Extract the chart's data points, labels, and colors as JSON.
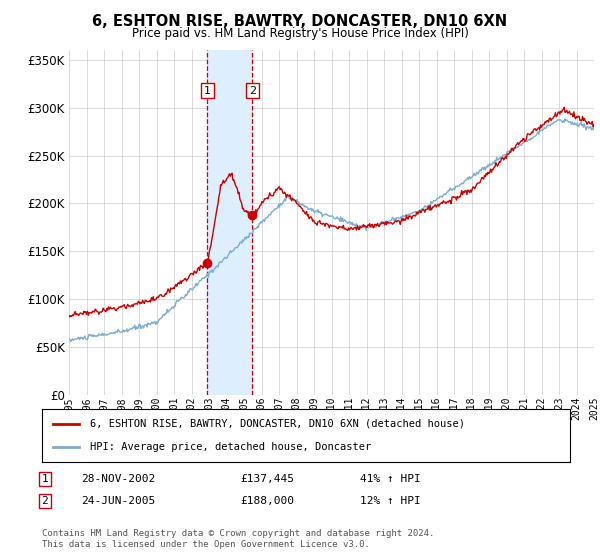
{
  "title": "6, ESHTON RISE, BAWTRY, DONCASTER, DN10 6XN",
  "subtitle": "Price paid vs. HM Land Registry's House Price Index (HPI)",
  "ylim": [
    0,
    360000
  ],
  "yticks": [
    0,
    50000,
    100000,
    150000,
    200000,
    250000,
    300000,
    350000
  ],
  "ytick_labels": [
    "£0",
    "£50K",
    "£100K",
    "£150K",
    "£200K",
    "£250K",
    "£300K",
    "£350K"
  ],
  "sale1": {
    "date_num": 2002.91,
    "price": 137445,
    "label": "1",
    "date_str": "28-NOV-2002"
  },
  "sale2": {
    "date_num": 2005.48,
    "price": 188000,
    "label": "2",
    "date_str": "24-JUN-2005"
  },
  "legend_red": "6, ESHTON RISE, BAWTRY, DONCASTER, DN10 6XN (detached house)",
  "legend_blue": "HPI: Average price, detached house, Doncaster",
  "table_row1": [
    "1",
    "28-NOV-2002",
    "£137,445",
    "41% ↑ HPI"
  ],
  "table_row2": [
    "2",
    "24-JUN-2005",
    "£188,000",
    "12% ↑ HPI"
  ],
  "footnote": "Contains HM Land Registry data © Crown copyright and database right 2024.\nThis data is licensed under the Open Government Licence v3.0.",
  "red_color": "#cc0000",
  "blue_color": "#7aadd4",
  "shade_color": "#ddeeff",
  "grid_color": "#cccccc",
  "background_color": "#ffffff"
}
